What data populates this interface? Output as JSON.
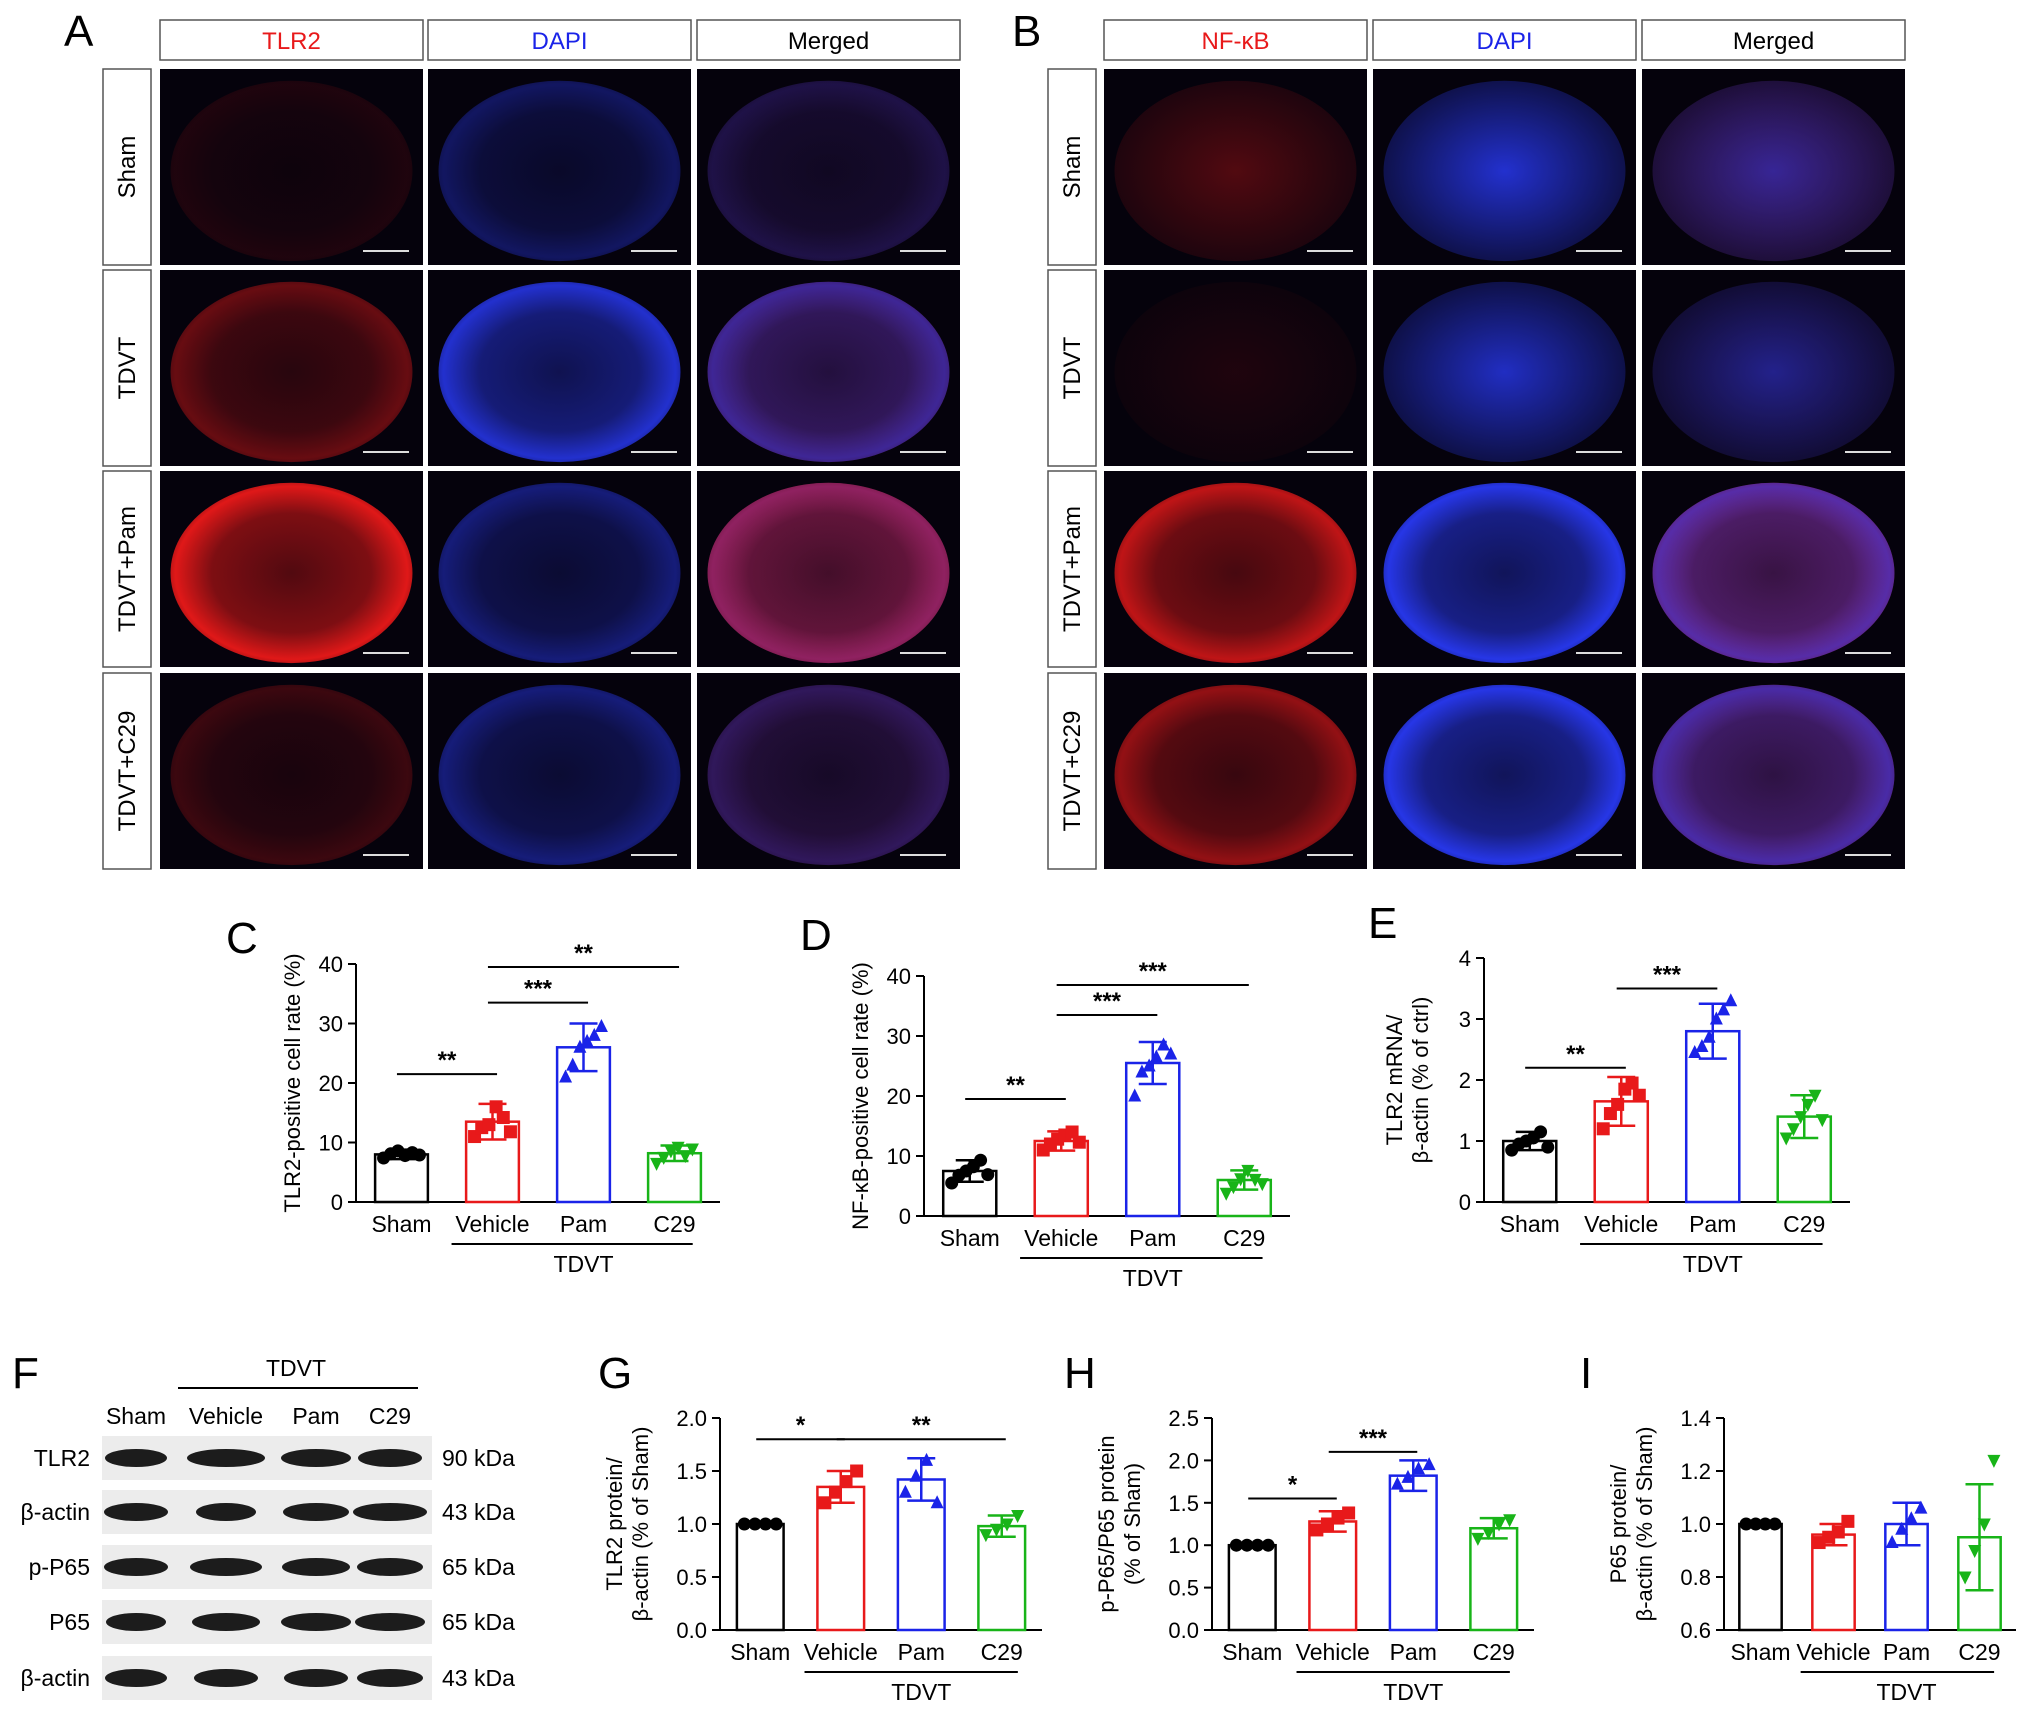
{
  "panel_labels": [
    "A",
    "B",
    "C",
    "D",
    "E",
    "F",
    "G",
    "H",
    "I"
  ],
  "microscopy": [
    {
      "panel": "A",
      "columns": [
        "TLR2",
        "DAPI",
        "Merged"
      ],
      "column_colors": [
        "#e8191a",
        "#1a23e8",
        "#000000"
      ],
      "rows": [
        "Sham",
        "TDVT",
        "TDVT+Pam",
        "TDVT+C29"
      ],
      "marker_intensity": [
        0.12,
        0.45,
        1.0,
        0.25
      ],
      "dapi_intensity": [
        0.35,
        0.8,
        0.45,
        0.45
      ]
    },
    {
      "panel": "B",
      "columns": [
        "NF-κB",
        "DAPI",
        "Merged"
      ],
      "column_colors": [
        "#e8191a",
        "#1a23e8",
        "#000000"
      ],
      "rows": [
        "Sham",
        "TDVT",
        "TDVT+Pam",
        "TDVT+C29"
      ],
      "marker_intensity": [
        0.35,
        0.12,
        0.85,
        0.65
      ],
      "dapi_intensity": [
        0.8,
        0.75,
        0.9,
        0.9
      ]
    }
  ],
  "group_colors": [
    "#000000",
    "#e8191a",
    "#1a23e8",
    "#18b418"
  ],
  "western": {
    "group_label": "TDVT",
    "lanes": [
      "Sham",
      "Vehicle",
      "Pam",
      "C29"
    ],
    "rows": [
      {
        "name": "TLR2",
        "size": "90 kDa"
      },
      {
        "name": "β-actin",
        "size": "43 kDa"
      },
      {
        "name": "p-P65",
        "size": "65 kDa"
      },
      {
        "name": "P65",
        "size": "65 kDa"
      },
      {
        "name": "β-actin",
        "size": "43 kDa"
      }
    ]
  },
  "chart_data": [
    {
      "panel": "C",
      "type": "bar",
      "categories": [
        "Sham",
        "Vehicle",
        "Pam",
        "C29"
      ],
      "group_label": "TDVT",
      "ylabel": "TLR2-positive cell rate (%)",
      "ylim": [
        0,
        40
      ],
      "yticks": [
        "0",
        "10",
        "20",
        "30",
        "40"
      ],
      "values": [
        8,
        13.5,
        26,
        8.2
      ],
      "errors": [
        0.8,
        3,
        4,
        1.3
      ],
      "points": [
        [
          7.4,
          8.1,
          8.6,
          7.8,
          8.3,
          7.9
        ],
        [
          11,
          12.5,
          13,
          16,
          14.2,
          11.8
        ],
        [
          21,
          23,
          26,
          27,
          28,
          29.5
        ],
        [
          6.5,
          7.5,
          8.6,
          9.2,
          7.8,
          8.9
        ]
      ],
      "significance": [
        {
          "from": 0,
          "to": 1,
          "label": "**",
          "y": 21.5
        },
        {
          "from": 1,
          "to": 2,
          "label": "***",
          "y": 33.5
        },
        {
          "from": 1,
          "to": 3,
          "label": "**",
          "y": 39.5
        }
      ]
    },
    {
      "panel": "D",
      "type": "bar",
      "categories": [
        "Sham",
        "Vehicle",
        "Pam",
        "C29"
      ],
      "group_label": "TDVT",
      "ylabel": "NF-κB-positive cell rate (%)",
      "ylim": [
        0,
        40
      ],
      "yticks": [
        "0",
        "10",
        "20",
        "30",
        "40"
      ],
      "values": [
        7.5,
        12.5,
        25.5,
        6
      ],
      "errors": [
        1.8,
        1.6,
        3.5,
        1.6
      ],
      "points": [
        [
          5.5,
          6.8,
          7.5,
          8.2,
          9.3,
          6.9
        ],
        [
          11,
          12,
          12.8,
          13.5,
          14,
          12.3
        ],
        [
          20,
          24,
          25,
          26.5,
          28.5,
          27
        ],
        [
          3.8,
          4.9,
          6.2,
          7.6,
          6.1,
          5.4
        ]
      ],
      "significance": [
        {
          "from": 0,
          "to": 1,
          "label": "**",
          "y": 19.5
        },
        {
          "from": 1,
          "to": 2,
          "label": "***",
          "y": 33.5
        },
        {
          "from": 1,
          "to": 3,
          "label": "***",
          "y": 38.5
        }
      ]
    },
    {
      "panel": "E",
      "type": "bar",
      "categories": [
        "Sham",
        "Vehicle",
        "Pam",
        "C29"
      ],
      "group_label": "TDVT",
      "ylabel": "TLR2 mRNA/ β-actin (% of ctrl)",
      "ylabel_lines": [
        "TLR2 mRNA/",
        "β-actin (% of ctrl)"
      ],
      "ylim": [
        0,
        4
      ],
      "yticks": [
        "0",
        "1",
        "2",
        "3",
        "4"
      ],
      "values": [
        1.0,
        1.65,
        2.8,
        1.4
      ],
      "errors": [
        0.15,
        0.4,
        0.45,
        0.35
      ],
      "points": [
        [
          0.85,
          0.95,
          1.0,
          1.05,
          1.15,
          0.9
        ],
        [
          1.2,
          1.45,
          1.6,
          1.85,
          1.95,
          1.75
        ],
        [
          2.45,
          2.55,
          2.7,
          3.0,
          3.15,
          3.3
        ],
        [
          1.05,
          1.2,
          1.4,
          1.6,
          1.75,
          1.35
        ]
      ],
      "significance": [
        {
          "from": 0,
          "to": 1,
          "label": "**",
          "y": 2.2
        },
        {
          "from": 1,
          "to": 2,
          "label": "***",
          "y": 3.5
        }
      ]
    },
    {
      "panel": "G",
      "type": "bar",
      "categories": [
        "Sham",
        "Vehicle",
        "Pam",
        "C29"
      ],
      "group_label": "TDVT",
      "ylabel": "TLR2 protein/ β-actin (% of Sham)",
      "ylabel_lines": [
        "TLR2 protein/",
        "β-actin (% of Sham)"
      ],
      "ylim": [
        0,
        2.0
      ],
      "yticks": [
        "0.0",
        "0.5",
        "1.0",
        "1.5",
        "2.0"
      ],
      "values": [
        1.0,
        1.35,
        1.42,
        0.98
      ],
      "errors": [
        0,
        0.15,
        0.2,
        0.1
      ],
      "points": [
        [
          1.0,
          1.0,
          1.0,
          1.0
        ],
        [
          1.2,
          1.3,
          1.4,
          1.5
        ],
        [
          1.3,
          1.45,
          1.6,
          1.2
        ],
        [
          0.9,
          0.95,
          1.0,
          1.08
        ]
      ],
      "significance": [
        {
          "from": 0,
          "to": 1,
          "label": "*",
          "y": 1.8
        },
        {
          "from": 1,
          "to": 3,
          "label": "**",
          "y": 1.8
        }
      ]
    },
    {
      "panel": "H",
      "type": "bar",
      "categories": [
        "Sham",
        "Vehicle",
        "Pam",
        "C29"
      ],
      "group_label": "TDVT",
      "ylabel": "p-P65/P65 protein (% of Sham)",
      "ylabel_lines": [
        "p-P65/P65 protein",
        "(% of Sham)"
      ],
      "ylim": [
        0,
        2.5
      ],
      "yticks": [
        "0.0",
        "0.5",
        "1.0",
        "1.5",
        "2.0",
        "2.5"
      ],
      "values": [
        1.0,
        1.28,
        1.82,
        1.2
      ],
      "errors": [
        0,
        0.12,
        0.18,
        0.12
      ],
      "points": [
        [
          1.0,
          1.0,
          1.0,
          1.0
        ],
        [
          1.18,
          1.25,
          1.32,
          1.38
        ],
        [
          1.72,
          1.8,
          1.9,
          1.95
        ],
        [
          1.08,
          1.15,
          1.25,
          1.3
        ]
      ],
      "significance": [
        {
          "from": 0,
          "to": 1,
          "label": "*",
          "y": 1.55
        },
        {
          "from": 1,
          "to": 2,
          "label": "***",
          "y": 2.1
        }
      ]
    },
    {
      "panel": "I",
      "type": "bar",
      "categories": [
        "Sham",
        "Vehicle",
        "Pam",
        "C29"
      ],
      "group_label": "TDVT",
      "ylabel": "P65 protein/ β-actin (% of Sham)",
      "ylabel_lines": [
        "P65 protein/",
        "β-actin (% of Sham)"
      ],
      "ylim": [
        0.6,
        1.4
      ],
      "yticks": [
        "0.6",
        "0.8",
        "1.0",
        "1.2",
        "1.4"
      ],
      "values": [
        1.0,
        0.96,
        1.0,
        0.95
      ],
      "errors": [
        0,
        0.04,
        0.08,
        0.2
      ],
      "points": [
        [
          1.0,
          1.0,
          1.0,
          1.0
        ],
        [
          0.93,
          0.95,
          0.97,
          1.01
        ],
        [
          0.93,
          0.98,
          1.02,
          1.06
        ],
        [
          0.8,
          0.9,
          1.0,
          1.24
        ]
      ],
      "significance": []
    }
  ]
}
